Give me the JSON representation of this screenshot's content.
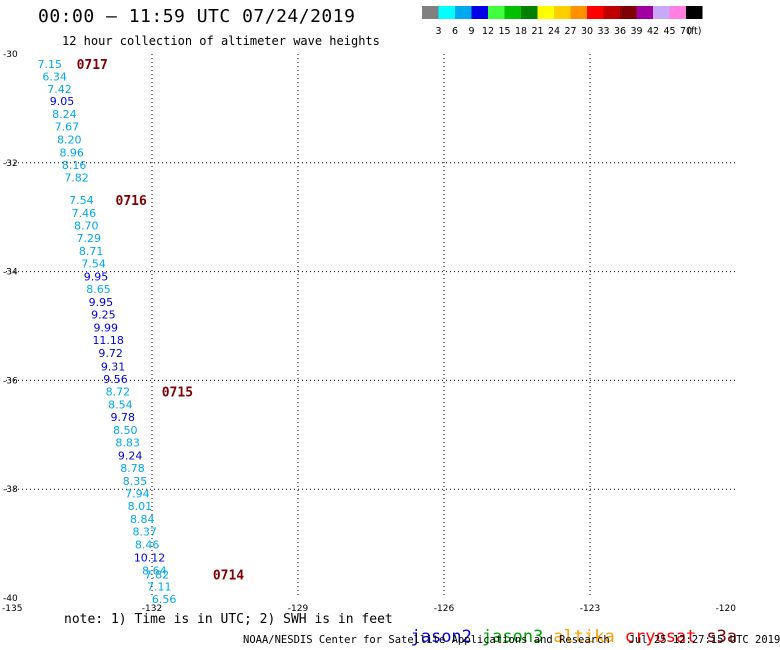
{
  "header": {
    "title": "00:00 – 11:59 UTC 07/24/2019",
    "subtitle": "12 hour collection of altimeter wave heights"
  },
  "colorbar": {
    "unit": "(ft)",
    "bins": [
      {
        "label": "3",
        "color": "#808080"
      },
      {
        "label": "6",
        "color": "#00ffff"
      },
      {
        "label": "9",
        "color": "#00a8f0"
      },
      {
        "label": "12",
        "color": "#0000e8"
      },
      {
        "label": "15",
        "color": "#40ff40"
      },
      {
        "label": "18",
        "color": "#00c000"
      },
      {
        "label": "21",
        "color": "#008000"
      },
      {
        "label": "24",
        "color": "#ffff00"
      },
      {
        "label": "27",
        "color": "#ffd000"
      },
      {
        "label": "30",
        "color": "#ff9000"
      },
      {
        "label": "33",
        "color": "#ff0000"
      },
      {
        "label": "36",
        "color": "#c00000"
      },
      {
        "label": "39",
        "color": "#800000"
      },
      {
        "label": "42",
        "color": "#a000a0"
      },
      {
        "label": "45",
        "color": "#c8a8f8"
      },
      {
        "label": "70",
        "color": "#ff80e0"
      },
      {
        "label": "",
        "color": "#000000"
      }
    ]
  },
  "chart_data": {
    "type": "scatter",
    "title": "00:00 – 11:59 UTC 07/24/2019",
    "subtitle": "12 hour collection of altimeter wave heights",
    "xlabel": "",
    "ylabel": "",
    "xlim": [
      -135,
      -120
    ],
    "ylim": [
      -40,
      -30
    ],
    "x_ticks": [
      -135,
      -132,
      -129,
      -126,
      -123,
      -120
    ],
    "y_ticks": [
      -30,
      -32,
      -34,
      -36,
      -38,
      -40
    ],
    "x_tick_labels": [
      "-135",
      "-132",
      "-129",
      "-126",
      "-123",
      "-120"
    ],
    "y_tick_labels": [
      "-30",
      "-32",
      "-34",
      "-36",
      "-38",
      "-40"
    ],
    "grid": true,
    "color_low": "#00a8f0",
    "color_high": "#0000e8",
    "points": [
      {
        "lon": -134.1,
        "lat": -30.18,
        "value": "7.15"
      },
      {
        "lon": -134.0,
        "lat": -30.41,
        "value": "6.34"
      },
      {
        "lon": -133.9,
        "lat": -30.64,
        "value": "7.42"
      },
      {
        "lon": -133.85,
        "lat": -30.86,
        "value": "9.05"
      },
      {
        "lon": -133.8,
        "lat": -31.1,
        "value": "8.24"
      },
      {
        "lon": -133.75,
        "lat": -31.33,
        "value": "7.67"
      },
      {
        "lon": -133.7,
        "lat": -31.57,
        "value": "8.20"
      },
      {
        "lon": -133.65,
        "lat": -31.81,
        "value": "8.96"
      },
      {
        "lon": -133.6,
        "lat": -32.04,
        "value": "8.16"
      },
      {
        "lon": -133.55,
        "lat": -32.27,
        "value": "7.82"
      },
      {
        "lon": -133.45,
        "lat": -32.68,
        "value": "7.54"
      },
      {
        "lon": -133.4,
        "lat": -32.92,
        "value": "7.46"
      },
      {
        "lon": -133.35,
        "lat": -33.15,
        "value": "8.70"
      },
      {
        "lon": -133.3,
        "lat": -33.38,
        "value": "7.29"
      },
      {
        "lon": -133.25,
        "lat": -33.62,
        "value": "8.71"
      },
      {
        "lon": -133.2,
        "lat": -33.85,
        "value": "7.54"
      },
      {
        "lon": -133.15,
        "lat": -34.09,
        "value": "9.95"
      },
      {
        "lon": -133.1,
        "lat": -34.32,
        "value": "8.65"
      },
      {
        "lon": -133.05,
        "lat": -34.56,
        "value": "9.95"
      },
      {
        "lon": -133.0,
        "lat": -34.79,
        "value": "9.25"
      },
      {
        "lon": -132.95,
        "lat": -35.03,
        "value": "9.99"
      },
      {
        "lon": -132.9,
        "lat": -35.26,
        "value": "11.18"
      },
      {
        "lon": -132.85,
        "lat": -35.5,
        "value": "9.72"
      },
      {
        "lon": -132.8,
        "lat": -35.74,
        "value": "9.31"
      },
      {
        "lon": -132.75,
        "lat": -35.97,
        "value": "9.56"
      },
      {
        "lon": -132.7,
        "lat": -36.2,
        "value": "8.72"
      },
      {
        "lon": -132.65,
        "lat": -36.44,
        "value": "8.54"
      },
      {
        "lon": -132.6,
        "lat": -36.67,
        "value": "9.78"
      },
      {
        "lon": -132.55,
        "lat": -36.91,
        "value": "8.50"
      },
      {
        "lon": -132.5,
        "lat": -37.14,
        "value": "8.83"
      },
      {
        "lon": -132.45,
        "lat": -37.38,
        "value": "9.24"
      },
      {
        "lon": -132.4,
        "lat": -37.61,
        "value": "8.78"
      },
      {
        "lon": -132.35,
        "lat": -37.85,
        "value": "8.35"
      },
      {
        "lon": -132.3,
        "lat": -38.08,
        "value": "7.94"
      },
      {
        "lon": -132.25,
        "lat": -38.31,
        "value": "8.01"
      },
      {
        "lon": -132.2,
        "lat": -38.55,
        "value": "8.84"
      },
      {
        "lon": -132.15,
        "lat": -38.78,
        "value": "8.37"
      },
      {
        "lon": -132.1,
        "lat": -39.02,
        "value": "8.46"
      },
      {
        "lon": -132.05,
        "lat": -39.26,
        "value": "10.12"
      },
      {
        "lon": -131.95,
        "lat": -39.49,
        "value": "8.64"
      },
      {
        "lon": -131.9,
        "lat": -39.57,
        "value": "7.82"
      },
      {
        "lon": -131.85,
        "lat": -39.79,
        "value": "7.11"
      },
      {
        "lon": -131.75,
        "lat": -40.02,
        "value": "6.56"
      }
    ],
    "date_labels": [
      {
        "lon": -133.55,
        "lat": -30.18,
        "text": "0717",
        "color": "#800000"
      },
      {
        "lon": -132.75,
        "lat": -32.68,
        "text": "0716",
        "color": "#800000"
      },
      {
        "lon": -131.8,
        "lat": -36.2,
        "text": "0715",
        "color": "#800000"
      },
      {
        "lon": -130.75,
        "lat": -39.57,
        "text": "0714",
        "color": "#800000"
      }
    ]
  },
  "footer": {
    "note": "note:  1) Time is in UTC;  2) SWH is in feet",
    "credit": "NOAA/NESDIS Center for Satellite Applications and Research   Jul 25 12:27:15 UTC 2019",
    "satellites": [
      {
        "name": "jason2",
        "color": "#0000e0"
      },
      {
        "name": "jason3",
        "color": "#00a000"
      },
      {
        "name": "altika",
        "color": "#ffa000"
      },
      {
        "name": "cryosat",
        "color": "#ff0000"
      },
      {
        "name": "s3a",
        "color": "#800000"
      }
    ]
  }
}
